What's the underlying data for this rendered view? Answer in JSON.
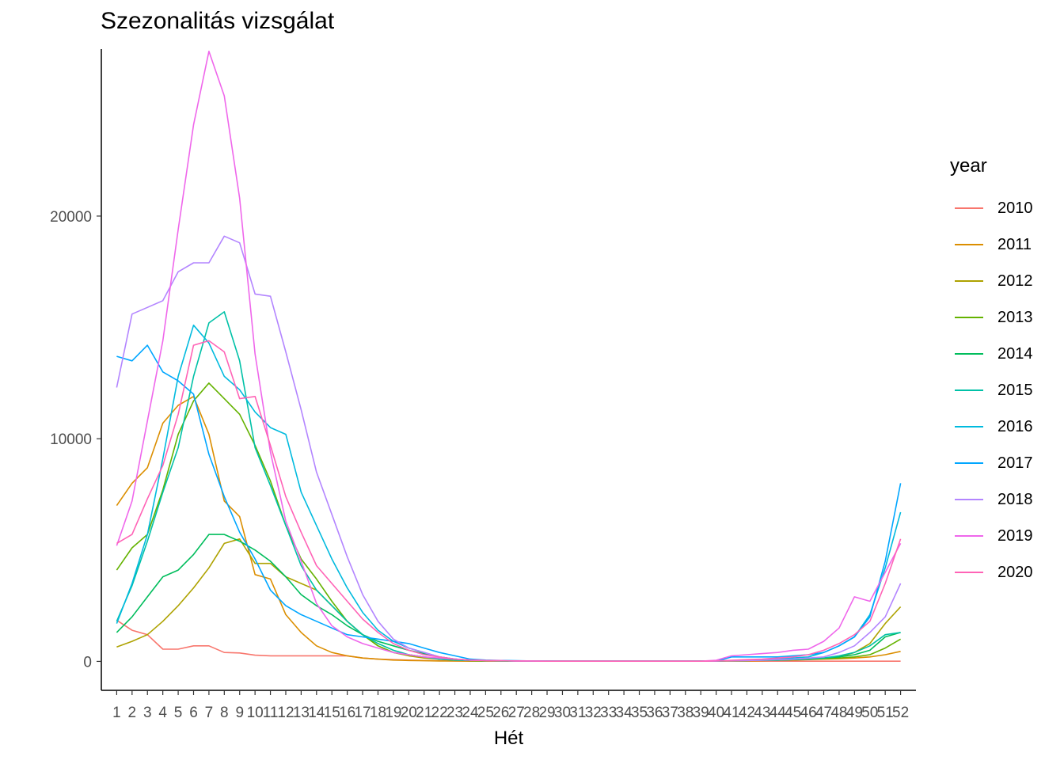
{
  "chart_data": {
    "type": "line",
    "title": "Szezonalitás vizsgálat",
    "xlabel": "Hét",
    "ylabel": "",
    "legend_title": "year",
    "legend_position": "right",
    "grid": false,
    "xlim": [
      0,
      53
    ],
    "ylim": [
      -1300,
      27500
    ],
    "y_ticks": [
      0,
      10000,
      20000
    ],
    "x": [
      1,
      2,
      3,
      4,
      5,
      6,
      7,
      8,
      9,
      10,
      11,
      12,
      13,
      14,
      15,
      16,
      17,
      18,
      19,
      20,
      21,
      22,
      23,
      24,
      25,
      26,
      27,
      28,
      29,
      30,
      31,
      32,
      33,
      34,
      35,
      36,
      37,
      38,
      39,
      40,
      41,
      42,
      43,
      44,
      45,
      46,
      47,
      48,
      49,
      50,
      51,
      52
    ],
    "series": [
      {
        "name": "2010",
        "color": "#F8766D",
        "values": [
          1850,
          1400,
          1200,
          550,
          550,
          700,
          700,
          400,
          380,
          280,
          250,
          250,
          250,
          250,
          250,
          250,
          150,
          100,
          80,
          60,
          40,
          30,
          20,
          15,
          10,
          10,
          10,
          10,
          10,
          10,
          10,
          10,
          10,
          10,
          10,
          10,
          10,
          10,
          10,
          10,
          10,
          10,
          10,
          10,
          10,
          10,
          10,
          10,
          10,
          10,
          10,
          10
        ]
      },
      {
        "name": "2011",
        "color": "#DB8E00",
        "values": [
          7000,
          8000,
          8700,
          10700,
          11500,
          11900,
          10200,
          7200,
          6500,
          3900,
          3700,
          2100,
          1300,
          700,
          400,
          250,
          150,
          100,
          60,
          40,
          30,
          20,
          15,
          10,
          10,
          10,
          10,
          10,
          10,
          10,
          10,
          10,
          10,
          10,
          10,
          10,
          10,
          10,
          10,
          10,
          20,
          20,
          30,
          50,
          60,
          80,
          100,
          120,
          150,
          200,
          300,
          450
        ]
      },
      {
        "name": "2012",
        "color": "#AEA200",
        "values": [
          650,
          900,
          1200,
          1800,
          2500,
          3300,
          4200,
          5300,
          5500,
          4400,
          4400,
          3800,
          3500,
          3200,
          2500,
          1800,
          1200,
          700,
          400,
          250,
          150,
          100,
          60,
          40,
          30,
          20,
          15,
          10,
          10,
          10,
          10,
          10,
          10,
          10,
          10,
          10,
          10,
          10,
          20,
          20,
          30,
          40,
          50,
          70,
          90,
          120,
          150,
          200,
          400,
          800,
          1700,
          2450
        ]
      },
      {
        "name": "2013",
        "color": "#64B200",
        "values": [
          4100,
          5100,
          5700,
          7700,
          10200,
          11700,
          12500,
          11800,
          11100,
          9700,
          8100,
          6100,
          4600,
          3700,
          2700,
          1800,
          1200,
          700,
          400,
          300,
          200,
          100,
          60,
          40,
          30,
          20,
          15,
          10,
          10,
          10,
          10,
          10,
          10,
          10,
          10,
          10,
          10,
          10,
          10,
          20,
          30,
          40,
          50,
          60,
          80,
          100,
          120,
          150,
          200,
          300,
          600,
          1000
        ]
      },
      {
        "name": "2014",
        "color": "#00BD5C",
        "values": [
          1300,
          2000,
          2900,
          3800,
          4100,
          4800,
          5700,
          5700,
          5400,
          5000,
          4500,
          3800,
          3000,
          2500,
          2100,
          1600,
          1200,
          900,
          700,
          500,
          350,
          200,
          100,
          60,
          40,
          30,
          20,
          15,
          10,
          10,
          10,
          10,
          10,
          10,
          10,
          10,
          10,
          10,
          10,
          20,
          30,
          40,
          50,
          60,
          80,
          100,
          150,
          200,
          300,
          500,
          1100,
          1300
        ]
      },
      {
        "name": "2015",
        "color": "#00C1A7",
        "values": [
          1800,
          3400,
          5400,
          7600,
          9600,
          12800,
          15200,
          15700,
          13500,
          9600,
          7900,
          6100,
          4300,
          3200,
          2500,
          1800,
          1200,
          800,
          500,
          300,
          200,
          100,
          60,
          40,
          30,
          20,
          15,
          10,
          10,
          10,
          10,
          10,
          10,
          10,
          10,
          10,
          10,
          10,
          10,
          20,
          30,
          40,
          50,
          60,
          80,
          100,
          150,
          250,
          400,
          700,
          1200,
          1300
        ]
      },
      {
        "name": "2016",
        "color": "#00BADE",
        "values": [
          1700,
          3500,
          5700,
          9100,
          12800,
          15100,
          14300,
          12800,
          12200,
          11200,
          10500,
          10200,
          7600,
          6100,
          4600,
          3300,
          2200,
          1400,
          900,
          600,
          400,
          200,
          100,
          60,
          40,
          30,
          20,
          15,
          10,
          10,
          10,
          10,
          10,
          10,
          10,
          10,
          10,
          10,
          10,
          20,
          40,
          60,
          80,
          100,
          150,
          200,
          400,
          700,
          1100,
          2100,
          4200,
          6700
        ]
      },
      {
        "name": "2017",
        "color": "#00A6FF",
        "values": [
          13700,
          13500,
          14200,
          13000,
          12600,
          12000,
          9300,
          7400,
          5800,
          4600,
          3200,
          2500,
          2100,
          1800,
          1500,
          1200,
          1100,
          1000,
          900,
          800,
          600,
          400,
          250,
          100,
          60,
          40,
          30,
          20,
          15,
          10,
          10,
          10,
          10,
          10,
          10,
          10,
          10,
          10,
          10,
          10,
          200,
          200,
          200,
          200,
          250,
          300,
          400,
          700,
          1100,
          2000,
          4500,
          8000
        ]
      },
      {
        "name": "2018",
        "color": "#B385FF",
        "values": [
          12300,
          15600,
          15900,
          16200,
          17500,
          17900,
          17900,
          19100,
          18800,
          16500,
          16400,
          13900,
          11300,
          8500,
          6600,
          4700,
          3000,
          1800,
          1000,
          600,
          400,
          200,
          100,
          60,
          40,
          30,
          20,
          15,
          10,
          10,
          10,
          10,
          10,
          10,
          10,
          10,
          10,
          10,
          10,
          20,
          30,
          40,
          50,
          80,
          100,
          150,
          200,
          400,
          700,
          1300,
          2000,
          3500
        ]
      },
      {
        "name": "2019",
        "color": "#EF67EB",
        "values": [
          5200,
          7200,
          10800,
          14400,
          19400,
          24100,
          27400,
          25400,
          20800,
          13800,
          9400,
          6300,
          4500,
          2600,
          1600,
          1100,
          800,
          600,
          400,
          300,
          200,
          150,
          100,
          60,
          40,
          30,
          20,
          15,
          10,
          10,
          10,
          10,
          10,
          10,
          10,
          10,
          10,
          10,
          10,
          50,
          250,
          300,
          350,
          400,
          500,
          550,
          900,
          1500,
          2900,
          2700,
          4000,
          5300
        ]
      },
      {
        "name": "2020",
        "color": "#FF63B6",
        "values": [
          5300,
          5700,
          7300,
          8800,
          11100,
          14200,
          14400,
          13900,
          11800,
          11900,
          9700,
          7400,
          5800,
          4300,
          3500,
          2700,
          1900,
          1300,
          800,
          500,
          300,
          200,
          100,
          60,
          40,
          30,
          20,
          15,
          10,
          10,
          10,
          10,
          10,
          10,
          10,
          10,
          10,
          10,
          10,
          20,
          50,
          80,
          100,
          150,
          200,
          300,
          500,
          800,
          1200,
          1800,
          3500,
          5500
        ]
      }
    ]
  }
}
